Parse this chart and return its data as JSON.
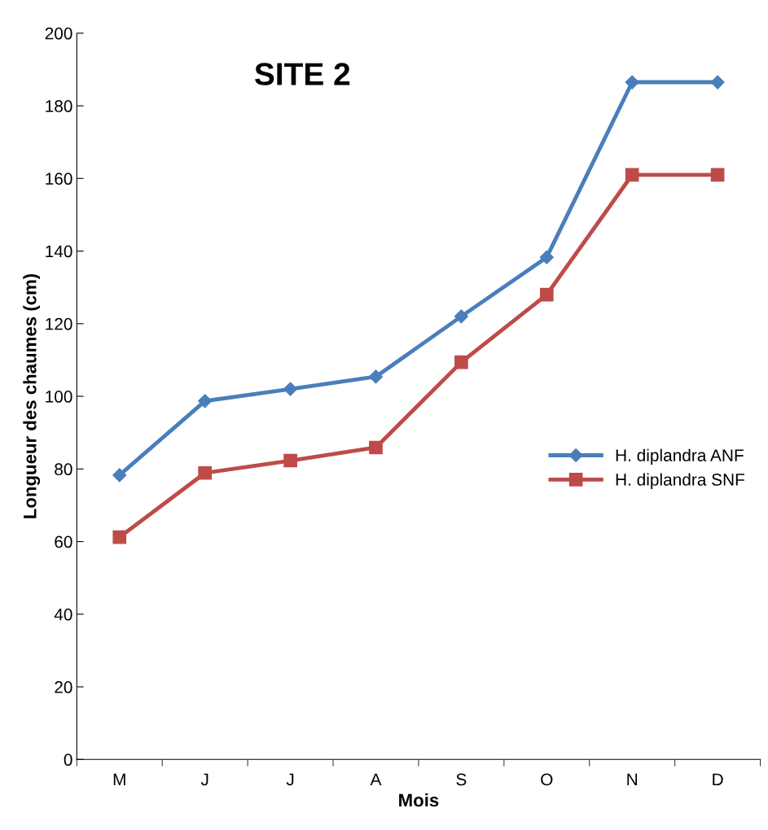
{
  "chart_data": {
    "type": "line",
    "title": "SITE 2",
    "xlabel": "Mois",
    "ylabel": "Longueur des chaumes (cm)",
    "categories": [
      "M",
      "J",
      "J",
      "A",
      "S",
      "O",
      "N",
      "D"
    ],
    "series": [
      {
        "name": "H. diplandra ANF",
        "color": "#4a7ebb",
        "marker": "diamond",
        "values": [
          78.3,
          98.7,
          102.0,
          105.4,
          122.0,
          138.3,
          186.5,
          186.5
        ]
      },
      {
        "name": "H. diplandra SNF",
        "color": "#be4b48",
        "marker": "square",
        "values": [
          61.2,
          78.9,
          82.3,
          85.9,
          109.4,
          128.0,
          161.0,
          161.0
        ]
      }
    ],
    "ylim": [
      0,
      200
    ],
    "yticks": [
      0,
      20,
      40,
      60,
      80,
      100,
      120,
      140,
      160,
      180,
      200
    ],
    "grid": false,
    "legend": "right",
    "line_style": "solid"
  }
}
